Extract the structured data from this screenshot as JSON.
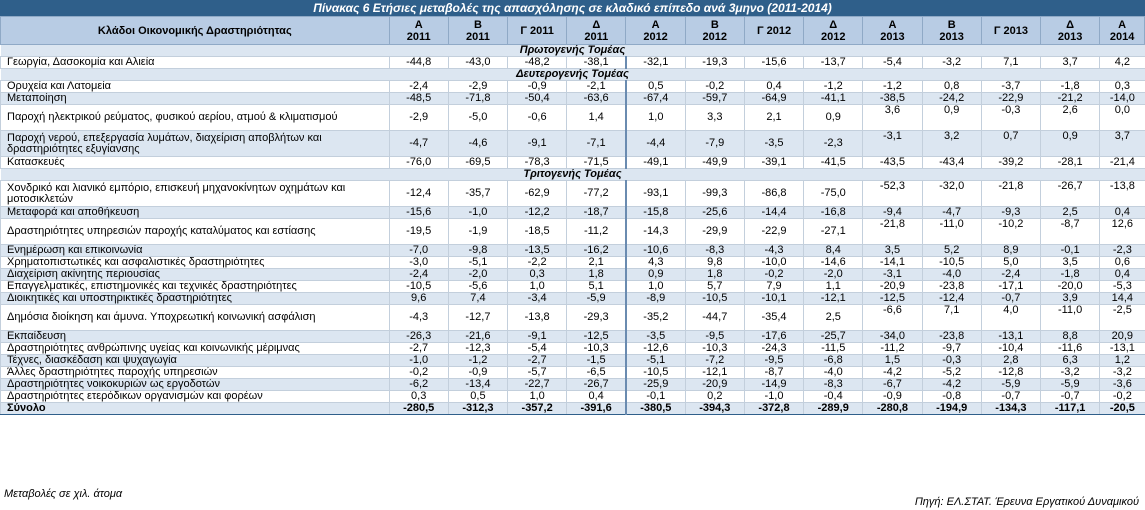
{
  "title": "Πίνακας 6 Ετήσιες μεταβολές της απασχόλησης σε κλαδικό επίπεδο ανά 3μηνο (2011-2014)",
  "header": {
    "activity": "Κλάδοι Οικονομικής Δραστηριότητας",
    "columns": [
      {
        "q": "Α",
        "y": "2011"
      },
      {
        "q": "Β",
        "y": "2011"
      },
      {
        "label": "Γ 2011"
      },
      {
        "q": "Δ",
        "y": "2011"
      },
      {
        "q": "Α",
        "y": "2012"
      },
      {
        "q": "Β",
        "y": "2012"
      },
      {
        "label": "Γ 2012"
      },
      {
        "q": "Δ",
        "y": "2012"
      },
      {
        "q": "Α",
        "y": "2013"
      },
      {
        "q": "Β",
        "y": "2013"
      },
      {
        "label": "Γ 2013"
      },
      {
        "q": "Δ",
        "y": "2013"
      },
      {
        "q": "Α",
        "y": "2014"
      }
    ]
  },
  "rows": [
    {
      "type": "sector",
      "label": "Πρωτογενής Τομέας"
    },
    {
      "type": "data",
      "shade": false,
      "label": "Γεωργία, Δασοκομία και Αλιεία",
      "values": [
        "-44,8",
        "-43,0",
        "-48,2",
        "-38,1",
        "-32,1",
        "-19,3",
        "-15,6",
        "-13,7",
        "-5,4",
        "-3,2",
        "7,1",
        "3,7",
        "4,2"
      ]
    },
    {
      "type": "sector",
      "label": "Δευτερογενής Τομέας"
    },
    {
      "type": "data",
      "shade": false,
      "label": "Ορυχεία και Λατομεία",
      "values": [
        "-2,4",
        "-2,9",
        "-0,9",
        "-2,1",
        "0,5",
        "-0,2",
        "0,4",
        "-1,2",
        "-1,2",
        "0,8",
        "-3,7",
        "-1,8",
        "0,3"
      ]
    },
    {
      "type": "data",
      "shade": true,
      "label": "Μεταποίηση",
      "values": [
        "-48,5",
        "-71,8",
        "-50,4",
        "-63,6",
        "-67,4",
        "-59,7",
        "-64,9",
        "-41,1",
        "-38,5",
        "-24,2",
        "-22,9",
        "-21,2",
        "-14,0"
      ]
    },
    {
      "type": "data",
      "shade": false,
      "tall": true,
      "label": "Παροχή ηλεκτρικού ρεύματος, φυσικού αερίου, ατμού & κλιματισμού",
      "values": [
        "-2,9",
        "-5,0",
        "-0,6",
        "1,4",
        "1,0",
        "3,3",
        "2,1",
        "0,9",
        "3,6",
        "0,9",
        "-0,3",
        "2,6",
        "0,0"
      ]
    },
    {
      "type": "data",
      "shade": true,
      "tall": true,
      "label": "Παροχή νερού, επεξεργασία λυμάτων, διαχείριση αποβλήτων και δραστηριότητες εξυγίανσης",
      "values": [
        "-4,7",
        "-4,6",
        "-9,1",
        "-7,1",
        "-4,4",
        "-7,9",
        "-3,5",
        "-2,3",
        "-3,1",
        "3,2",
        "0,7",
        "0,9",
        "3,7"
      ]
    },
    {
      "type": "data",
      "shade": false,
      "label": "Κατασκευές",
      "values": [
        "-76,0",
        "-69,5",
        "-78,3",
        "-71,5",
        "-49,1",
        "-49,9",
        "-39,1",
        "-41,5",
        "-43,5",
        "-43,4",
        "-39,2",
        "-28,1",
        "-21,4"
      ]
    },
    {
      "type": "sector",
      "label": "Τριτογενής Τομέας"
    },
    {
      "type": "data",
      "shade": false,
      "tall": true,
      "label": "Χονδρικό και λιανικό εμπόριο, επισκευή μηχανοκίνητων οχημάτων και μοτοσικλετών",
      "values": [
        "-12,4",
        "-35,7",
        "-62,9",
        "-77,2",
        "-93,1",
        "-99,3",
        "-86,8",
        "-75,0",
        "-52,3",
        "-32,0",
        "-21,8",
        "-26,7",
        "-13,8"
      ]
    },
    {
      "type": "data",
      "shade": true,
      "label": "Μεταφορά και αποθήκευση",
      "values": [
        "-15,6",
        "-1,0",
        "-12,2",
        "-18,7",
        "-15,8",
        "-25,6",
        "-14,4",
        "-16,8",
        "-9,4",
        "-4,7",
        "-9,3",
        "2,5",
        "0,4"
      ]
    },
    {
      "type": "data",
      "shade": false,
      "tall": true,
      "label": "Δραστηριότητες υπηρεσιών παροχής καταλύματος και εστίασης",
      "values": [
        "-19,5",
        "-1,9",
        "-18,5",
        "-11,2",
        "-14,3",
        "-29,9",
        "-22,9",
        "-27,1",
        "-21,8",
        "-11,0",
        "-10,2",
        "-8,7",
        "12,6"
      ]
    },
    {
      "type": "data",
      "shade": true,
      "label": "Ενημέρωση και επικοινωνία",
      "values": [
        "-7,0",
        "-9,8",
        "-13,5",
        "-16,2",
        "-10,6",
        "-8,3",
        "-4,3",
        "8,4",
        "3,5",
        "5,2",
        "8,9",
        "-0,1",
        "-2,3"
      ]
    },
    {
      "type": "data",
      "shade": false,
      "label": "Χρηματοπιστωτικές και ασφαλιστικές δραστηριότητες",
      "values": [
        "-3,0",
        "-5,1",
        "-2,2",
        "2,1",
        "4,3",
        "9,8",
        "-10,0",
        "-14,6",
        "-14,1",
        "-10,5",
        "5,0",
        "3,5",
        "0,6"
      ]
    },
    {
      "type": "data",
      "shade": true,
      "label": "Διαχείριση ακίνητης περιουσίας",
      "values": [
        "-2,4",
        "-2,0",
        "0,3",
        "1,8",
        "0,9",
        "1,8",
        "-0,2",
        "-2,0",
        "-3,1",
        "-4,0",
        "-2,4",
        "-1,8",
        "0,4"
      ]
    },
    {
      "type": "data",
      "shade": false,
      "label": "Επαγγελματικές, επιστημονικές και τεχνικές δραστηριότητες",
      "values": [
        "-10,5",
        "-5,6",
        "1,0",
        "5,1",
        "1,0",
        "5,7",
        "7,9",
        "1,1",
        "-20,9",
        "-23,8",
        "-17,1",
        "-20,0",
        "-5,3"
      ]
    },
    {
      "type": "data",
      "shade": true,
      "label": "Διοικητικές και υποστηρικτικές δραστηριότητες",
      "values": [
        "9,6",
        "7,4",
        "-3,4",
        "-5,9",
        "-8,9",
        "-10,5",
        "-10,1",
        "-12,1",
        "-12,5",
        "-12,4",
        "-0,7",
        "3,9",
        "14,4"
      ]
    },
    {
      "type": "data",
      "shade": false,
      "tall": true,
      "label": "Δημόσια διοίκηση και άμυνα. Υποχρεωτική κοινωνική ασφάλιση",
      "values": [
        "-4,3",
        "-12,7",
        "-13,8",
        "-29,3",
        "-35,2",
        "-44,7",
        "-35,4",
        "2,5",
        "-6,6",
        "7,1",
        "4,0",
        "-11,0",
        "-2,5"
      ]
    },
    {
      "type": "data",
      "shade": true,
      "label": "Εκπαίδευση",
      "values": [
        "-26,3",
        "-21,6",
        "-9,1",
        "-12,5",
        "-3,5",
        "-9,5",
        "-17,6",
        "-25,7",
        "-34,0",
        "-23,8",
        "-13,1",
        "8,8",
        "20,9"
      ]
    },
    {
      "type": "data",
      "shade": false,
      "label": "Δραστηριότητες ανθρώπινης υγείας και κοινωνικής μέριμνας",
      "values": [
        "-2,7",
        "-12,3",
        "-5,4",
        "-10,3",
        "-12,6",
        "-10,3",
        "-24,3",
        "-11,5",
        "-11,2",
        "-9,7",
        "-10,4",
        "-11,6",
        "-13,1"
      ]
    },
    {
      "type": "data",
      "shade": true,
      "label": "Τέχνες, διασκέδαση και ψυχαγωγία",
      "values": [
        "-1,0",
        "-1,2",
        "-2,7",
        "-1,5",
        "-5,1",
        "-7,2",
        "-9,5",
        "-6,8",
        "1,5",
        "-0,3",
        "2,8",
        "6,3",
        "1,2"
      ]
    },
    {
      "type": "data",
      "shade": false,
      "label": "Άλλες δραστηριότητες παροχής υπηρεσιών",
      "values": [
        "-0,2",
        "-0,9",
        "-5,7",
        "-6,5",
        "-10,5",
        "-12,1",
        "-8,7",
        "-4,0",
        "-4,2",
        "-5,2",
        "-12,8",
        "-3,2",
        "-3,2"
      ]
    },
    {
      "type": "data",
      "shade": true,
      "label": "Δραστηριότητες νοικοκυριών ως εργοδοτών",
      "values": [
        "-6,2",
        "-13,4",
        "-22,7",
        "-26,7",
        "-25,9",
        "-20,9",
        "-14,9",
        "-8,3",
        "-6,7",
        "-4,2",
        "-5,9",
        "-5,9",
        "-3,6"
      ]
    },
    {
      "type": "data",
      "shade": false,
      "label": "Δραστηριότητες ετερόδικων οργανισμών και φορέων",
      "values": [
        "0,3",
        "0,5",
        "1,0",
        "0,4",
        "-0,1",
        "0,2",
        "-1,0",
        "-0,4",
        "-0,9",
        "-0,8",
        "-0,7",
        "-0,7",
        "-0,2"
      ]
    },
    {
      "type": "total",
      "label": "Σύνολο",
      "values": [
        "-280,5",
        "-312,3",
        "-357,2",
        "-391,6",
        "-380,5",
        "-394,3",
        "-372,8",
        "-289,9",
        "-280,8",
        "-194,9",
        "-134,3",
        "-117,1",
        "-20,5"
      ]
    }
  ],
  "footnote": "Μεταβολές σε χιλ. άτομα",
  "source": "Πηγή: ΕΛ.ΣΤΑΤ. Έρευνα Εργατικού Δυναμικού"
}
